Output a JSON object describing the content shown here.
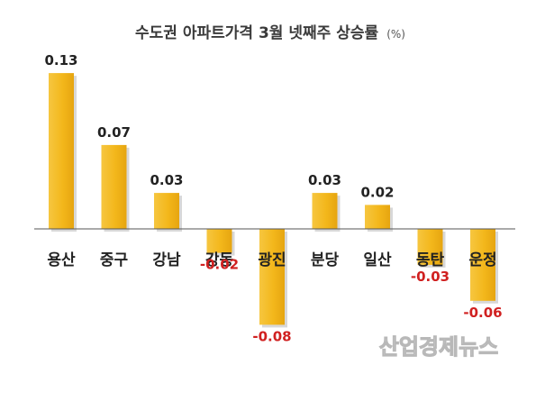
{
  "chart_data": {
    "type": "bar",
    "title": "수도권 아파트가격 3월 넷째주 상승률",
    "title_unit": "(%)",
    "categories": [
      "용산",
      "중구",
      "강남",
      "강동",
      "광진",
      "분당",
      "일산",
      "동탄",
      "운정"
    ],
    "values": [
      0.13,
      0.07,
      0.03,
      -0.02,
      -0.08,
      0.03,
      0.02,
      -0.03,
      -0.06
    ],
    "value_labels": [
      "0.13",
      "0.07",
      "0.03",
      "-0.02",
      "-0.08",
      "0.03",
      "0.02",
      "-0.03",
      "-0.06"
    ],
    "xlabel": "",
    "ylabel": "",
    "ylim": [
      -0.08,
      0.13
    ],
    "grid": false,
    "legend": "none",
    "colors": {
      "bar": "#f3b71b",
      "bar_shadow": "#d8d8d8",
      "axis": "#555555",
      "positive_label": "#222222",
      "negative_label": "#d02020"
    }
  },
  "watermark": "산업경제뉴스"
}
